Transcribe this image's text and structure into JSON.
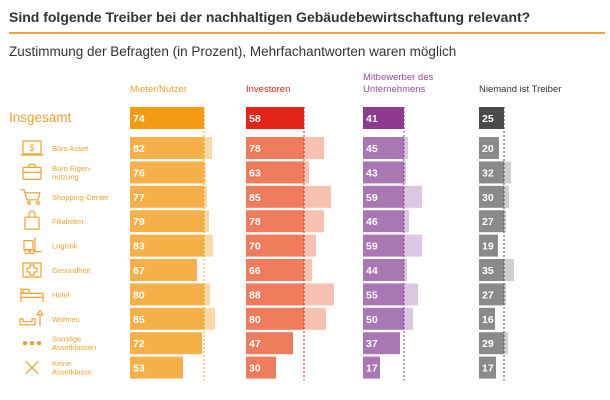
{
  "title": "Sind folgende Treiber bei der nachhaltigen Gebäudebewirtschaftung relevant?",
  "subtitle": "Zustimmung der Befragten (in Prozent), Mehrfachantworten waren möglich",
  "colors": {
    "title_rule": "#f0a33a",
    "text": "#333333",
    "row_label": "#f0a030"
  },
  "chart_data": {
    "type": "bar",
    "title": "Sind folgende Treiber bei der nachhaltigen Gebäudebewirtschaftung relevant?",
    "subtitle": "Zustimmung der Befragten (in Prozent), Mehrfachantworten waren möglich",
    "total_label": "Insgesamt",
    "categories": [
      "Büro Asset",
      "Büro Eigen-nutzung",
      "Shopping-Center",
      "Filialisten",
      "Logistik",
      "Gesundheit",
      "Hotel",
      "Wohnen",
      "Sonstige Assetklassen",
      "Keine Assetklasse"
    ],
    "category_lines": [
      [
        "Büro Asset"
      ],
      [
        "Büro Eigen-",
        "nutzung"
      ],
      [
        "Shopping-Center"
      ],
      [
        "Filialisten"
      ],
      [
        "Logistik"
      ],
      [
        "Gesundheit"
      ],
      [
        "Hotel"
      ],
      [
        "Wohnen"
      ],
      [
        "Sonstige",
        "Assetklassen"
      ],
      [
        "Keine",
        "Assetklasse"
      ]
    ],
    "icons": [
      "office-building-icon",
      "briefcase-icon",
      "shopping-cart-icon",
      "shopping-bag-icon",
      "forklift-icon",
      "medical-cross-icon",
      "bed-icon",
      "sofa-lamp-icon",
      "more-dots-icon",
      "cross-icon"
    ],
    "series": [
      {
        "name": "Mieter/Nutzer",
        "total": 74,
        "values": [
          82,
          76,
          77,
          79,
          83,
          67,
          80,
          85,
          72,
          53
        ],
        "total_color": "#f39c12",
        "dark": "#f5b04a",
        "light": "#fad9a6",
        "label_color": "#f0a030"
      },
      {
        "name": "Investoren",
        "total": 58,
        "values": [
          78,
          63,
          85,
          78,
          70,
          66,
          88,
          80,
          47,
          30
        ],
        "total_color": "#e2231a",
        "dark": "#ee7b5c",
        "light": "#f7c1b1",
        "label_color": "#e2231a"
      },
      {
        "name": "Mitbewerber des Unternehmens",
        "total": 41,
        "values": [
          45,
          43,
          59,
          46,
          59,
          44,
          55,
          50,
          37,
          17
        ],
        "total_color": "#8e3a8e",
        "dark": "#a978b4",
        "light": "#dcc6e1",
        "label_color": "#9b4b9b"
      },
      {
        "name": "Niemand ist Treiber",
        "total": 25,
        "values": [
          20,
          32,
          30,
          27,
          19,
          35,
          27,
          16,
          29,
          17
        ],
        "total_color": "#4a4a4a",
        "dark": "#8a8a8a",
        "light": "#cfcfcf",
        "label_color": "#333333"
      }
    ],
    "series_header_lines": [
      [
        "Mieter/Nutzer"
      ],
      [
        "Investoren"
      ],
      [
        "Mitbewerber des",
        "Unternehmens"
      ],
      [
        "Niemand ist Treiber"
      ]
    ],
    "reference_line": "dashed line marks the total (Insgesamt) value in each column",
    "legend": "none",
    "grid": false
  }
}
